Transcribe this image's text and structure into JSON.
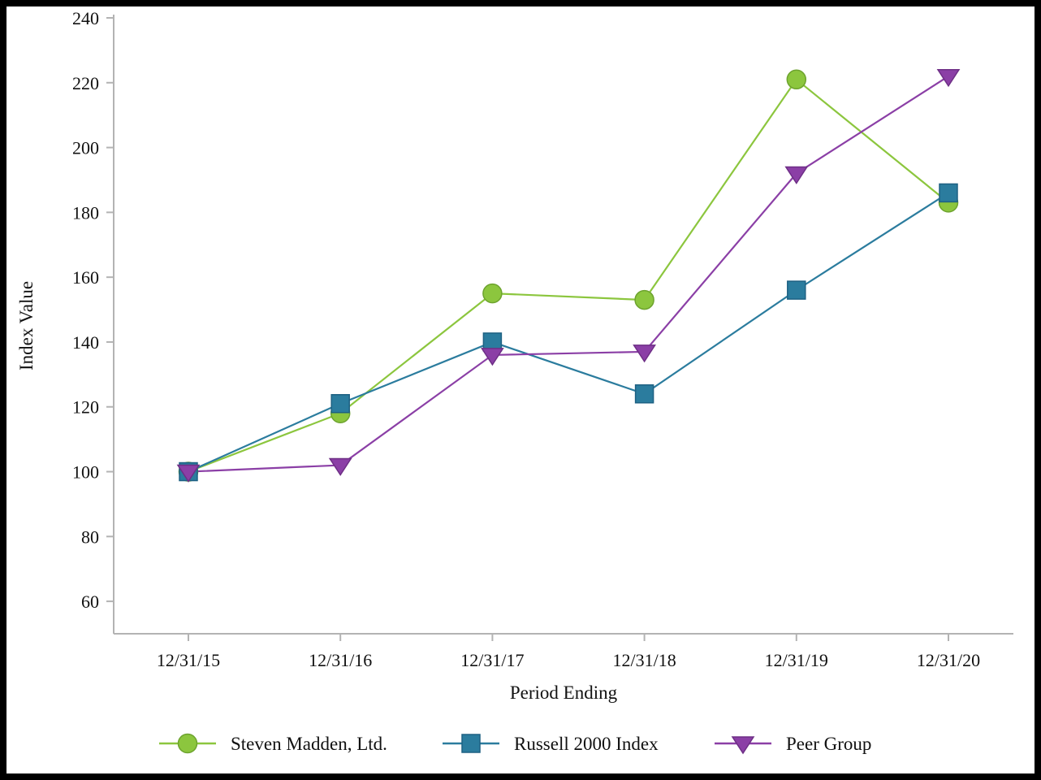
{
  "chart_data": {
    "type": "line",
    "title": "",
    "xlabel": "Period Ending",
    "ylabel": "Index Value",
    "x": [
      "12/31/15",
      "12/31/16",
      "12/31/17",
      "12/31/18",
      "12/31/19",
      "12/31/20"
    ],
    "series": [
      {
        "name": "Steven Madden, Ltd.",
        "marker": "circle",
        "color": "#8cc63e",
        "edge": "#6da32e",
        "values": [
          100,
          118,
          155,
          153,
          221,
          183
        ]
      },
      {
        "name": "Russell 2000 Index",
        "marker": "square",
        "color": "#2b7c9e",
        "edge": "#1e6183",
        "values": [
          100,
          121,
          140,
          124,
          156,
          186
        ]
      },
      {
        "name": "Peer Group",
        "marker": "triangle-down",
        "color": "#8b3fa6",
        "edge": "#6e2f86",
        "values": [
          100,
          102,
          136,
          137,
          192,
          222
        ]
      }
    ],
    "ylim": [
      50,
      240
    ],
    "yticks": [
      60,
      80,
      100,
      120,
      140,
      160,
      180,
      200,
      220,
      240
    ],
    "grid": false,
    "legend_position": "bottom",
    "axis_color": "#b3b3b3",
    "text_color": "#111111"
  }
}
